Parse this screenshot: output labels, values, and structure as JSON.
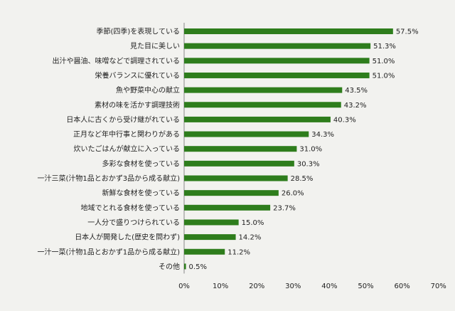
{
  "chart_data": {
    "type": "bar",
    "orientation": "horizontal",
    "categories": [
      "季節(四季)を表現している",
      "見た目に美しい",
      "出汁や醤油、味噌などで調理されている",
      "栄養バランスに優れている",
      "魚や野菜中心の献立",
      "素材の味を活かす調理技術",
      "日本人に古くから受け継がれている",
      "正月など年中行事と関わりがある",
      "炊いたごはんが献立に入っている",
      "多彩な食材を使っている",
      "一汁三菜(汁物1品とおかず3品から成る献立)",
      "新鮮な食材を使っている",
      "地域でとれる食材を使っている",
      "一人分で盛りつけられている",
      "日本人が開発した(歴史を問わず)",
      "一汁一菜(汁物1品とおかず1品から成る献立)",
      "その他"
    ],
    "values": [
      57.5,
      51.3,
      51.0,
      51.0,
      43.5,
      43.2,
      40.3,
      34.3,
      31.0,
      30.3,
      28.5,
      26.0,
      23.7,
      15.0,
      14.2,
      11.2,
      0.5
    ],
    "value_labels": [
      "57.5%",
      "51.3%",
      "51.0%",
      "51.0%",
      "43.5%",
      "43.2%",
      "40.3%",
      "34.3%",
      "31.0%",
      "30.3%",
      "28.5%",
      "26.0%",
      "23.7%",
      "15.0%",
      "14.2%",
      "11.2%",
      "0.5%"
    ],
    "xlim": [
      0,
      70
    ],
    "x_ticks": [
      0,
      10,
      20,
      30,
      40,
      50,
      60,
      70
    ],
    "x_tick_labels": [
      "0%",
      "10%",
      "20%",
      "30%",
      "40%",
      "50%",
      "60%",
      "70%"
    ],
    "grid": false,
    "colors": {
      "bar": "#2e7d1c",
      "axis": "#888888",
      "text": "#222222",
      "background": "#f2f2ef"
    }
  }
}
